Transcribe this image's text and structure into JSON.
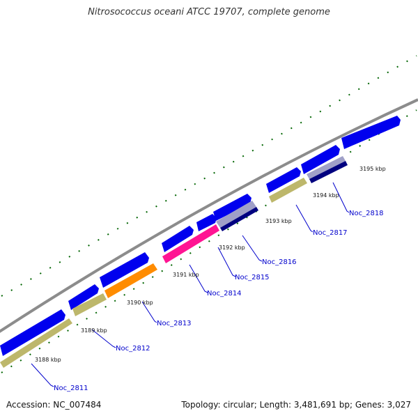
{
  "title": "Nitrosococcus oceani ATCC 19707, complete genome",
  "footer": {
    "accession": "Accession: NC_007484",
    "summary": "Topology: circular; Length: 3,481,691 bp; Genes: 3,027"
  },
  "colors": {
    "backbone": "#8c8c8c",
    "forward_gene": "#0000ee",
    "olive_gene": "#bdb76b",
    "orange_gene": "#ff8c00",
    "pink_gene": "#ff1493",
    "navy_gene": "#000080",
    "tick": "#006400",
    "label_line": "#0000cc"
  },
  "kbp_ticks": [
    "3188 kbp",
    "3189 kbp",
    "3190 kbp",
    "3191 kbp",
    "3192 kbp",
    "3193 kbp",
    "3194 kbp",
    "3195 kbp"
  ],
  "gene_labels": [
    "Noc_2811",
    "Noc_2812",
    "Noc_2813",
    "Noc_2814",
    "Noc_2815",
    "Noc_2816",
    "Noc_2817",
    "Noc_2818"
  ]
}
